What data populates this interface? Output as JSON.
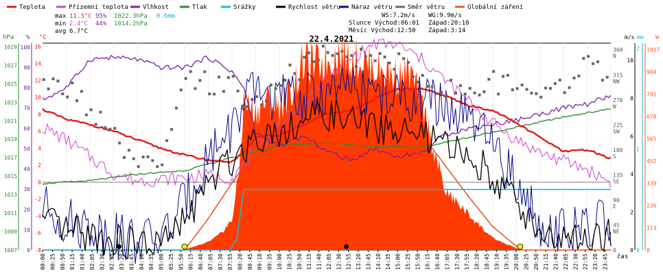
{
  "chart_data": {
    "type": "line",
    "title": "22.4.2021",
    "legend": [
      {
        "name": "Teplota",
        "color": "#e41a1c"
      },
      {
        "name": "Přízemní teplota",
        "color": "#cc44cc"
      },
      {
        "name": "Vlhkost",
        "color": "#7a1fa2"
      },
      {
        "name": "Tlak",
        "color": "#2e8b2e"
      },
      {
        "name": "Srážky",
        "color": "#17b6d6"
      },
      {
        "name": "Rychlost větru",
        "color": "#000000"
      },
      {
        "name": "Náraz větru",
        "color": "#0a0a8a"
      },
      {
        "name": "Směr větru",
        "color": "#666666"
      },
      {
        "name": "Globální záření",
        "color": "#ff5511"
      }
    ],
    "stats": [
      {
        "label": "max",
        "temp": "11.3°C",
        "hum": "95%",
        "press": "1022.3hPa",
        "rain": "0.6mm"
      },
      {
        "label": "min",
        "temp": "2.4°C",
        "hum": "44%",
        "press": "1014.2hPa",
        "rain": ""
      },
      {
        "label": "avg",
        "temp": "6.7°C",
        "hum": "",
        "press": "",
        "rain": ""
      }
    ],
    "info": {
      "ws": "WS:7.2m/s",
      "wg": "WG:9.9m/s",
      "sun": "Slunce Východ:06:01",
      "sun_set": "Západ:20:10",
      "moon": "Měsíc  Východ:12:50",
      "moon_set": "Západ:3:14"
    },
    "axes": {
      "hpa": {
        "label": "hPa",
        "ticks": [
          "1029",
          "1027",
          "1025",
          "1023",
          "1021",
          "1019",
          "1017",
          "1015",
          "1013",
          "1011",
          "1009",
          "1007"
        ]
      },
      "pct": {
        "label": "%",
        "ticks": [
          "100",
          "90",
          "80",
          "70",
          "60",
          "50",
          "40",
          "30",
          "20",
          "10",
          "0"
        ]
      },
      "temp": {
        "label": "°C",
        "ticks": [
          "16",
          "14",
          "12",
          "10",
          "8",
          "6",
          "4",
          "2",
          "0",
          "-2",
          "-4",
          "-6",
          "-8"
        ]
      },
      "dir": {
        "ticks": [
          "360",
          "N",
          "315",
          "NW",
          "270",
          "W",
          "225",
          "SW",
          "180",
          "S",
          "135",
          "SE",
          "90",
          "E",
          "45",
          "NE",
          "0"
        ]
      },
      "ms": {
        "label": "m/s",
        "ticks": [
          "10",
          "8",
          "6",
          "4",
          "2",
          "0"
        ]
      },
      "mm": {
        "label": "mm",
        "ticks": [
          "2",
          "1",
          "0"
        ]
      },
      "w": {
        "label": "W",
        "ticks": [
          "1017",
          "904",
          "791",
          "678",
          "565",
          "452",
          "339",
          "226",
          "113",
          "0"
        ]
      },
      "xlabel": "čas",
      "time_ticks": [
        "00:00",
        "00:25",
        "00:50",
        "01:15",
        "01:40",
        "02:05",
        "02:30",
        "02:55",
        "03:20",
        "03:45",
        "04:10",
        "04:35",
        "05:00",
        "05:25",
        "05:50",
        "06:15",
        "06:40",
        "07:05",
        "07:30",
        "07:55",
        "08:20",
        "08:45",
        "09:10",
        "09:35",
        "10:00",
        "10:25",
        "10:50",
        "11:15",
        "11:40",
        "12:05",
        "12:30",
        "12:55",
        "13:20",
        "13:45",
        "14:10",
        "14:35",
        "15:00",
        "15:25",
        "15:50",
        "16:15",
        "16:40",
        "17:05",
        "17:30",
        "17:55",
        "18:20",
        "18:45",
        "19:10",
        "19:35",
        "20:00",
        "20:25",
        "20:50",
        "21:15",
        "21:40",
        "22:05",
        "22:30",
        "22:55",
        "23:20",
        "23:45"
      ]
    },
    "series": [
      {
        "name": "Teplota",
        "x": [
          0,
          1,
          2,
          3,
          4,
          5,
          6,
          7,
          8,
          8.5,
          9,
          9.5,
          10,
          11,
          12,
          13,
          14,
          15,
          16,
          17,
          18,
          19,
          20,
          21,
          22,
          23,
          24
        ],
        "values": [
          8.6,
          7.4,
          6.8,
          6.0,
          5.0,
          4.0,
          3.2,
          2.6,
          2.4,
          3.5,
          5.3,
          5.5,
          5.5,
          6.7,
          8.1,
          8.4,
          9.8,
          11.0,
          11.0,
          10.2,
          9.0,
          8.5,
          7.0,
          5.3,
          3.6,
          3.8,
          2.8
        ]
      },
      {
        "name": "Přízemní teplota",
        "x": [
          0,
          1,
          2,
          3,
          4,
          5,
          6,
          7,
          8,
          8.5,
          9,
          10,
          11,
          12,
          13,
          14,
          15,
          16,
          17,
          18,
          19,
          20,
          21,
          22,
          23,
          24
        ],
        "values": [
          6.5,
          5.0,
          3.0,
          1.0,
          0.2,
          0.3,
          0.5,
          0.8,
          0.5,
          2.0,
          4.0,
          6.5,
          9.2,
          12.0,
          14.5,
          16.3,
          16.2,
          14.5,
          12.0,
          9.5,
          7.0,
          5.0,
          3.5,
          2.5,
          1.5,
          0.0
        ]
      },
      {
        "name": "Vlhkost",
        "x": [
          0,
          1,
          2,
          3,
          4,
          5,
          6,
          7,
          8,
          8.5,
          9,
          10,
          11,
          12,
          13,
          14,
          15,
          16,
          17,
          18,
          19,
          20,
          21,
          22,
          23,
          24
        ],
        "values": [
          74,
          80,
          94,
          95,
          94,
          90,
          90,
          95,
          88,
          80,
          58,
          51,
          56,
          49,
          44,
          50,
          46,
          48,
          57,
          60,
          62,
          64,
          67,
          70,
          72,
          76
        ]
      },
      {
        "name": "Tlak",
        "x": [
          0,
          2,
          4,
          6,
          8,
          10,
          12,
          14,
          16,
          18,
          20,
          22,
          24
        ],
        "values": [
          1014.2,
          1014.5,
          1015.2,
          1015.6,
          1017.0,
          1018.3,
          1018.6,
          1018.2,
          1018.1,
          1019.2,
          1020.3,
          1021.4,
          1022.3
        ]
      },
      {
        "name": "Srážky",
        "x": [
          0,
          7.9,
          8.2,
          8.5,
          24
        ],
        "values": [
          0,
          0,
          0.1,
          0.6,
          0.6
        ]
      },
      {
        "name": "Rychlost větru",
        "x": [
          0,
          1,
          2,
          3,
          4,
          5,
          6,
          7,
          8,
          9,
          10,
          11,
          12,
          13,
          14,
          15,
          16,
          17,
          18,
          19,
          20,
          21,
          22,
          23,
          24
        ],
        "values": [
          1.5,
          1.0,
          0.8,
          0.5,
          0.3,
          0.3,
          1.5,
          3.5,
          4.8,
          6.0,
          6.3,
          6.8,
          7.2,
          6.8,
          6.5,
          6.3,
          6.0,
          5.5,
          5.0,
          4.0,
          2.5,
          1.0,
          0.5,
          0.5,
          0.8
        ]
      },
      {
        "name": "Náraz větru",
        "x": [
          0,
          1,
          2,
          3,
          4,
          5,
          6,
          7,
          8,
          9,
          10,
          11,
          12,
          13,
          14,
          15,
          16,
          17,
          18,
          19,
          20,
          21,
          22,
          23,
          24
        ],
        "values": [
          2.3,
          1.5,
          1.2,
          0.8,
          0.5,
          0.6,
          2.5,
          5.0,
          6.5,
          8.5,
          8.0,
          8.0,
          8.3,
          8.5,
          8.2,
          8.0,
          8.0,
          7.5,
          6.8,
          5.5,
          3.5,
          1.5,
          1.0,
          1.0,
          1.8
        ]
      },
      {
        "name": "Směr větru",
        "x": [
          0,
          1,
          2,
          3,
          4,
          5,
          6,
          7,
          8,
          9,
          10,
          11,
          12,
          13,
          14,
          15,
          16,
          17,
          18,
          19,
          20,
          21,
          22,
          23,
          24
        ],
        "values": [
          290,
          295,
          255,
          200,
          150,
          145,
          300,
          300,
          295,
          260,
          300,
          330,
          350,
          345,
          350,
          340,
          310,
          290,
          290,
          300,
          290,
          295,
          300,
          330,
          320
        ]
      },
      {
        "name": "Globální záření",
        "x": [
          0,
          5.9,
          6.5,
          7,
          7.5,
          8,
          8.3,
          8.5,
          9,
          9.5,
          10,
          10.5,
          11,
          11.5,
          12,
          12.5,
          13,
          13.5,
          14,
          14.5,
          15,
          15.5,
          16,
          16.5,
          17,
          17.5,
          18,
          19,
          20.2,
          24
        ],
        "values": [
          0,
          0,
          20,
          40,
          80,
          150,
          400,
          750,
          700,
          760,
          720,
          800,
          950,
          940,
          960,
          990,
          980,
          960,
          930,
          900,
          880,
          900,
          750,
          520,
          300,
          240,
          180,
          60,
          0,
          0
        ]
      },
      {
        "name": "Sluneční křivka",
        "x": [
          0,
          6.0,
          7,
          8,
          9,
          10,
          11,
          12,
          13,
          14,
          15,
          16,
          17,
          18,
          19,
          20.2,
          24
        ],
        "values": [
          0,
          0,
          160,
          340,
          510,
          660,
          770,
          840,
          860,
          820,
          720,
          590,
          430,
          270,
          120,
          0,
          0
        ]
      }
    ]
  }
}
